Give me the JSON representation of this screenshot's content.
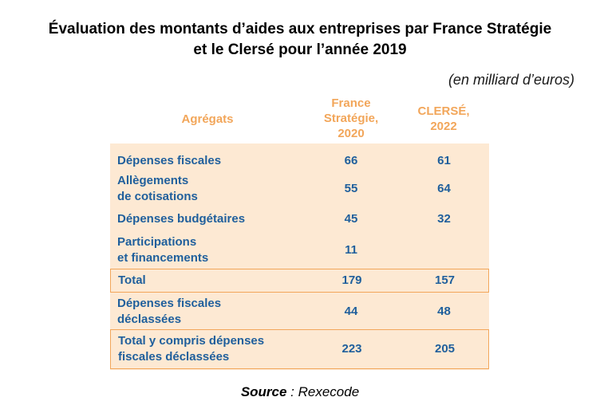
{
  "title": {
    "line1": "Évaluation des montants d’aides aux entreprises par France Stratégie",
    "line2": "et le Clersé pour l’année 2019"
  },
  "unit": "(en milliard d’euros)",
  "headers": {
    "aggregats": "Agrégats",
    "france_strategie": [
      "France",
      "Stratégie,",
      "2020"
    ],
    "clerse": [
      "CLERSÉ,",
      "2022"
    ]
  },
  "rows": [
    {
      "label": [
        "Dépenses fiscales"
      ],
      "fs": "66",
      "cl": "61"
    },
    {
      "label": [
        "Allègements",
        "de cotisations"
      ],
      "fs": "55",
      "cl": "64"
    },
    {
      "label": [
        "Dépenses budgétaires"
      ],
      "fs": "45",
      "cl": "32"
    },
    {
      "label": [
        "Participations",
        "et financements"
      ],
      "fs": "11",
      "cl": ""
    },
    {
      "label": [
        "Total"
      ],
      "fs": "179",
      "cl": "157"
    },
    {
      "label": [
        "Dépenses fiscales",
        "déclassées"
      ],
      "fs": "44",
      "cl": "48"
    },
    {
      "label": [
        "Total y compris dépenses",
        "fiscales déclassées"
      ],
      "fs": "223",
      "cl": "205"
    }
  ],
  "source": {
    "label": "Source",
    "text": " : Rexecode"
  },
  "colors": {
    "header_text": "#f2a65a",
    "body_text": "#1f5f9c",
    "table_bg": "#fde9d3"
  }
}
